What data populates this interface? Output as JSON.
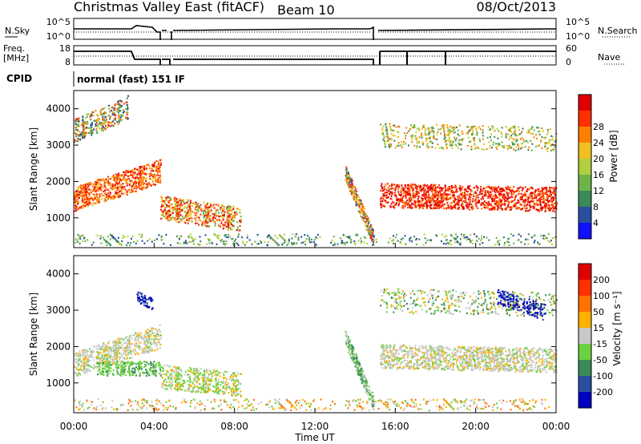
{
  "header": {
    "title": "Christmas Valley East (fitACF)",
    "beam": "Beam 10",
    "date": "08/Oct/2013"
  },
  "panels": {
    "nsky": {
      "left_label": "N.Sky",
      "right_label": "N.Search",
      "left_ticks": [
        "10^5",
        "10^0"
      ],
      "right_ticks": [
        "10^5",
        "10^0"
      ]
    },
    "freq": {
      "left_label": "Freq.",
      "left_unit": "[MHz]",
      "right_label": "Nave",
      "left_ticks": [
        "18",
        "8"
      ],
      "right_ticks": [
        "60",
        "0"
      ]
    },
    "cpid": {
      "label": "CPID",
      "text": "normal (fast) 151 IF"
    }
  },
  "chart_data": [
    {
      "type": "heatmap",
      "name": "power",
      "ylabel": "Slant Range [km]",
      "ylim": [
        180,
        4500
      ],
      "yticks": [
        "1000",
        "2000",
        "3000",
        "4000"
      ],
      "colorbar_label": "Power [dB]",
      "colorbar_ticks": [
        "4",
        "8",
        "12",
        "16",
        "20",
        "24",
        "28"
      ],
      "colors": [
        "#1010ff",
        "#2a4fa0",
        "#3a8a5a",
        "#6db34a",
        "#b0d040",
        "#f0c020",
        "#ff8000",
        "#ff3000",
        "#e00000"
      ]
    },
    {
      "type": "heatmap",
      "name": "velocity",
      "ylabel": "Slant Range [km]",
      "ylim": [
        180,
        4500
      ],
      "yticks": [
        "1000",
        "2000",
        "3000",
        "4000"
      ],
      "colorbar_label": "Velocity [m s⁻¹]",
      "colorbar_ticks": [
        "200",
        "100",
        "50",
        "15",
        "-15",
        "-50",
        "-100",
        "-200"
      ],
      "colors": [
        "#0000c0",
        "#2a4fa0",
        "#3a8a5a",
        "#6cd040",
        "#c8c8c8",
        "#ffb000",
        "#ff7000",
        "#ff3000",
        "#e00000"
      ]
    }
  ],
  "xaxis": {
    "label": "Time UT",
    "ticks": [
      "00:00",
      "04:00",
      "08:00",
      "12:00",
      "16:00",
      "20:00",
      "00:00"
    ]
  }
}
